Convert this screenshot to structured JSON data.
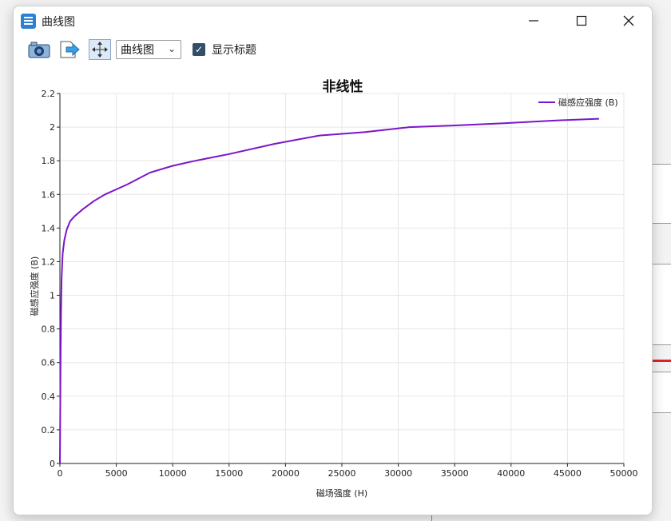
{
  "window": {
    "title": "曲线图"
  },
  "toolbar": {
    "camera_icon": "camera-icon",
    "export_icon": "export-arrow-icon",
    "move_icon": "move-arrows-icon",
    "chart_type_value": "曲线图",
    "show_title_checked": true,
    "show_title_label": "显示标题"
  },
  "colors": {
    "series": "#7a16c8",
    "grid": "#e6e6e6",
    "axis": "#222222"
  },
  "chart_data": {
    "type": "line",
    "title": "非线性",
    "xlabel": "磁场强度 (H)",
    "ylabel": "磁感应强度 (B)",
    "xlim": [
      0,
      50000
    ],
    "ylim": [
      0,
      2.2
    ],
    "xticks": [
      "0",
      "5000",
      "10000",
      "15000",
      "20000",
      "25000",
      "30000",
      "35000",
      "40000",
      "45000",
      "50000"
    ],
    "yticks": [
      "0",
      "0.2",
      "0.4",
      "0.6",
      "0.8",
      "1",
      "1.2",
      "1.4",
      "1.6",
      "1.8",
      "2",
      "2.2"
    ],
    "legend_position": "top-right",
    "grid": true,
    "series": [
      {
        "name": "磁感应强度 (B)",
        "x": [
          0,
          30,
          60,
          100,
          150,
          250,
          400,
          600,
          900,
          1300,
          2000,
          3000,
          4000,
          5000,
          6000,
          8000,
          10000,
          12000,
          15000,
          19000,
          23000,
          27000,
          31000,
          35000,
          40000,
          44000,
          47800
        ],
        "y": [
          0,
          0.3,
          0.6,
          0.9,
          1.1,
          1.25,
          1.33,
          1.39,
          1.44,
          1.47,
          1.51,
          1.56,
          1.6,
          1.63,
          1.66,
          1.73,
          1.77,
          1.8,
          1.84,
          1.9,
          1.95,
          1.97,
          2.0,
          2.01,
          2.025,
          2.04,
          2.05
        ]
      }
    ]
  }
}
